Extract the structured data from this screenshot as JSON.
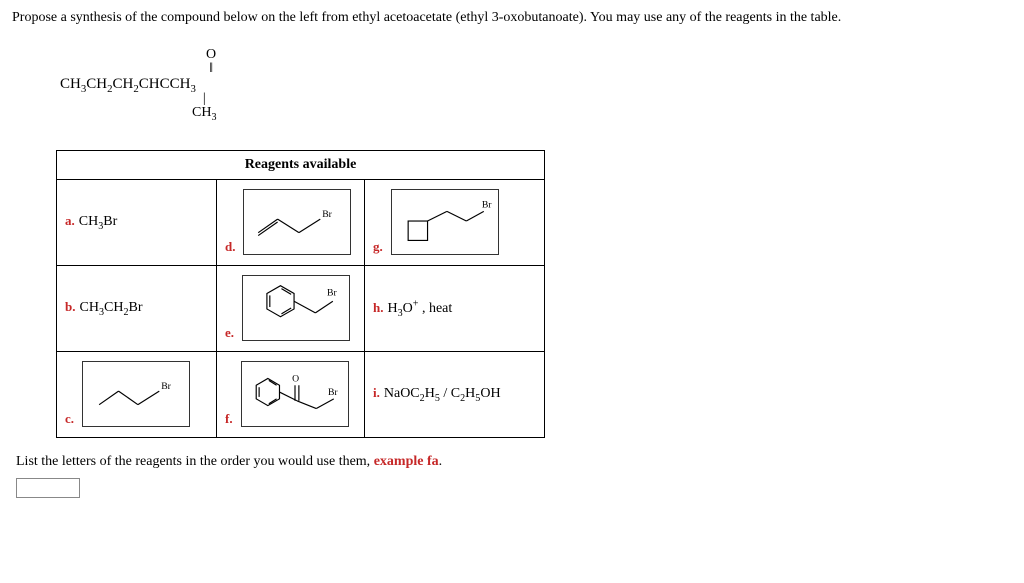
{
  "question_text": "Propose a synthesis of the compound below on the left from ethyl acetoacetate (ethyl 3-oxobutanoate). You may use any of the reagents in the table.",
  "target": {
    "top_fragment": "O",
    "main_formula_html": "CH<sub class='sub'>3</sub>CH<sub class='sub'>2</sub>CH<sub class='sub'>2</sub>CHCCH<sub class='sub'>3</sub>",
    "branch_formula_html": "CH<sub class='sub'>3</sub>"
  },
  "table": {
    "header": "Reagents available",
    "rows": [
      {
        "a": {
          "label": "a.",
          "text_html": "CH<sub class='sub'>3</sub>Br",
          "struct": null
        },
        "b": {
          "label": "d.",
          "struct": "allylBr",
          "br_label": "Br"
        },
        "c": {
          "label": "g.",
          "struct": "cyclobutylBr",
          "br_label": "Br"
        }
      },
      {
        "a": {
          "label": "b.",
          "text_html": "CH<sub class='sub'>3</sub>CH<sub class='sub'>2</sub>Br",
          "struct": null
        },
        "b": {
          "label": "e.",
          "struct": "benzylBr",
          "br_label": "Br"
        },
        "c": {
          "label": "h.",
          "text_html": "H<sub class='sub'>3</sub>O<sup class='sup'>+</sup> , heat",
          "struct": null
        }
      },
      {
        "a": {
          "label": "c.",
          "struct": "propylBr",
          "br_label": "Br"
        },
        "b": {
          "label": "f.",
          "struct": "phenacylBr",
          "br_label": "Br"
        },
        "c": {
          "label": "i.",
          "text_html": "NaOC<sub class='sub'>2</sub>H<sub class='sub'>5</sub> / C<sub class='sub'>2</sub>H<sub class='sub'>5</sub>OH",
          "struct": null
        }
      }
    ]
  },
  "instruction_prefix": "List the letters of the reagents in the order you would use them, ",
  "instruction_example": "example fa",
  "instruction_suffix": ".",
  "answer_value": "",
  "colors": {
    "label_red": "#c62828",
    "text": "#000000",
    "box_border": "#333333",
    "bg": "#ffffff"
  },
  "svg": {
    "stroke": "#000000",
    "stroke_width": 1.2,
    "br_font_size": 10
  }
}
